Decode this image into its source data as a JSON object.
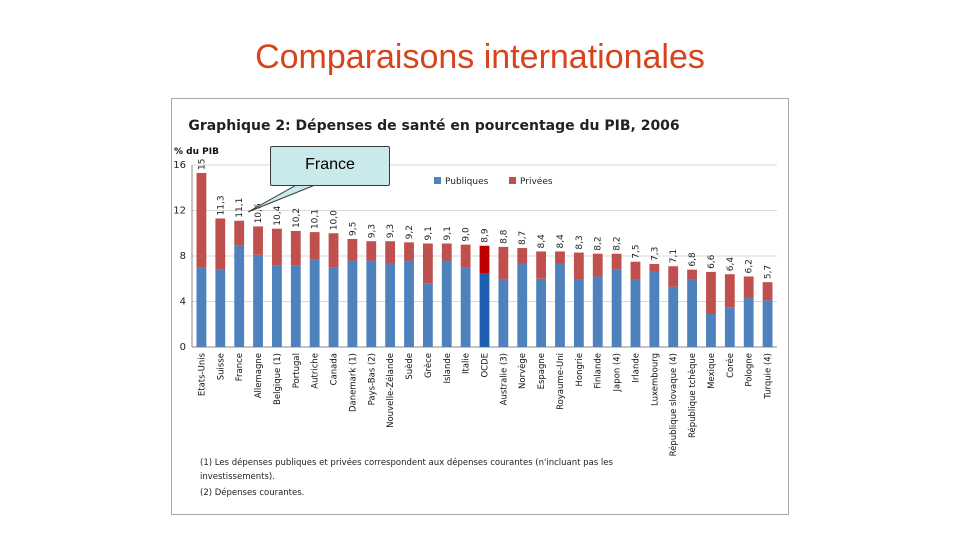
{
  "slide": {
    "title": "Comparaisons internationales"
  },
  "callout": {
    "label": "France"
  },
  "chart_data": {
    "type": "bar",
    "stacked": true,
    "title": "Graphique 2: Dépenses de santé en pourcentage du PIB, 2006",
    "ylabel": "% du PIB",
    "xlabel": "",
    "ylim": [
      0,
      16
    ],
    "yticks": [
      "0",
      "4",
      "8",
      "12",
      "16"
    ],
    "grid": true,
    "legend_position": "top-center",
    "colors": {
      "publiques": "#4f81bd",
      "privees": "#c0504d",
      "highlight_publiques": "#1f5fb0",
      "highlight_privees": "#c00000"
    },
    "highlight_category": "OCDE",
    "categories": [
      "Etats-Unis",
      "Suisse",
      "France",
      "Allemagne",
      "Belgique (1)",
      "Portugal",
      "Autriche",
      "Canada",
      "Danemark (1)",
      "Pays-Bas (2)",
      "Nouvelle-Zélande",
      "Suède",
      "Grèce",
      "Islande",
      "Italie",
      "OCDE",
      "Australie (3)",
      "Norvège",
      "Espagne",
      "Royaume-Uni",
      "Hongrie",
      "Finlande",
      "Japon (4)",
      "Irlande",
      "Luxembourg",
      "République slovaque (4)",
      "République tchèque",
      "Mexique",
      "Corée",
      "Pologne",
      "Turquie (4)"
    ],
    "totals": [
      15.3,
      11.3,
      11.1,
      10.6,
      10.4,
      10.2,
      10.1,
      10.0,
      9.5,
      9.3,
      9.3,
      9.2,
      9.1,
      9.1,
      9.0,
      8.9,
      8.8,
      8.7,
      8.4,
      8.4,
      8.3,
      8.2,
      8.2,
      7.5,
      7.3,
      7.1,
      6.8,
      6.6,
      6.4,
      6.2,
      5.7
    ],
    "total_labels": [
      "15",
      "11,3",
      "11,1",
      "10,6",
      "10,4",
      "10,2",
      "10,1",
      "10,0",
      "9,5",
      "9,3",
      "9,3",
      "9,2",
      "9,1",
      "9,1",
      "9,0",
      "8,9",
      "8,8",
      "8,7",
      "8,4",
      "8,4",
      "8,3",
      "8,2",
      "8,2",
      "7,5",
      "7,3",
      "7,1",
      "6,8",
      "6,6",
      "6,4",
      "6,2",
      "5,7"
    ],
    "series": [
      {
        "name": "Publiques",
        "values": [
          7.0,
          6.8,
          8.9,
          8.1,
          7.2,
          7.2,
          7.7,
          7.0,
          7.6,
          7.6,
          7.3,
          7.6,
          5.6,
          7.6,
          7.0,
          6.5,
          5.9,
          7.3,
          6.0,
          7.3,
          5.9,
          6.2,
          6.8,
          5.9,
          6.6,
          5.3,
          5.9,
          2.9,
          3.5,
          4.3,
          4.1
        ]
      },
      {
        "name": "Privées",
        "values": [
          8.3,
          4.5,
          2.2,
          2.5,
          3.2,
          3.0,
          2.4,
          3.0,
          1.9,
          1.7,
          2.0,
          1.6,
          3.5,
          1.5,
          2.0,
          2.4,
          2.9,
          1.4,
          2.4,
          1.1,
          2.4,
          2.0,
          1.4,
          1.6,
          0.7,
          1.8,
          0.9,
          3.7,
          2.9,
          1.9,
          1.6
        ]
      }
    ],
    "notes": [
      "(1) Les dépenses publiques et privées correspondent aux dépenses courantes (n'incluant pas les",
      "investissements).",
      "(2) Dépenses courantes."
    ]
  }
}
